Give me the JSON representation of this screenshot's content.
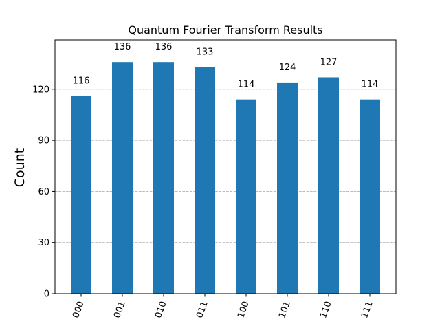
{
  "chart_data": {
    "type": "bar",
    "title": "Quantum Fourier Transform Results",
    "xlabel": "",
    "ylabel": "Count",
    "categories": [
      "000",
      "001",
      "010",
      "011",
      "100",
      "101",
      "110",
      "111"
    ],
    "values": [
      116,
      136,
      136,
      133,
      114,
      124,
      127,
      114
    ],
    "ylim": [
      0,
      149
    ],
    "yticks": [
      0,
      30,
      60,
      90,
      120
    ],
    "ytick_labels": [
      "0",
      "30",
      "60",
      "90",
      "120"
    ],
    "grid": "horizontal dashed",
    "bar_color": "#1f77b4",
    "grid_color": "#b0b0b0",
    "x_tick_rotation": "70 degrees"
  }
}
